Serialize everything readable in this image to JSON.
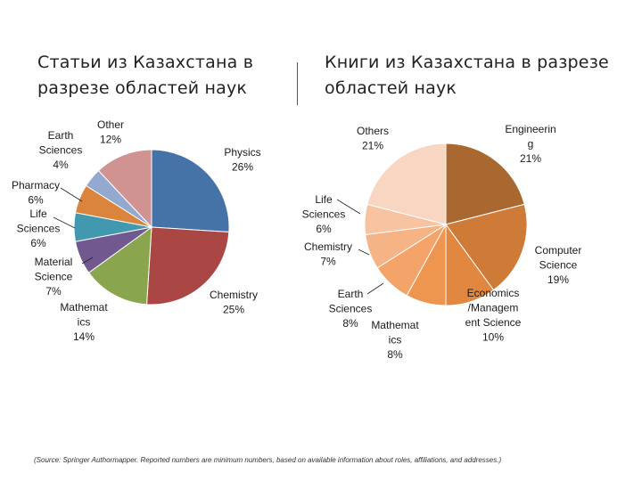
{
  "charts": {
    "left": {
      "title": "Статьи из Казахстана в разрезе областей наук"
    },
    "right": {
      "title": "Книги из Казахстана в разрезе областей наук"
    }
  },
  "source": "(Source: Springer Authormapper. Reported numbers are minimum numbers, based on available information about roles, affiliations, and addresses.)",
  "chart_data": [
    {
      "type": "pie",
      "title": "Статьи из Казахстана в разрезе областей наук",
      "slices": [
        {
          "label": "Physics",
          "value": 26,
          "value_text": "26%",
          "color": "#4572A7"
        },
        {
          "label": "Chemistry",
          "value": 25,
          "value_text": "25%",
          "color": "#AA4643"
        },
        {
          "label": "Mathematics",
          "value": 14,
          "value_text": "14%",
          "color": "#89A54E"
        },
        {
          "label": "Material Science",
          "value": 7,
          "value_text": "7%",
          "color": "#71588F"
        },
        {
          "label": "Life Sciences",
          "value": 6,
          "value_text": "6%",
          "color": "#4198AF"
        },
        {
          "label": "Pharmacy",
          "value": 6,
          "value_text": "6%",
          "color": "#DB843D"
        },
        {
          "label": "Earth Sciences",
          "value": 4,
          "value_text": "4%",
          "color": "#93A9CF"
        },
        {
          "label": "Other",
          "value": 12,
          "value_text": "12%",
          "color": "#D19392"
        }
      ]
    },
    {
      "type": "pie",
      "title": "Книги из Казахстана в разрезе областей наук",
      "slices": [
        {
          "label": "Engineering",
          "value": 21,
          "value_text": "21%",
          "color": "#A86830"
        },
        {
          "label": "Computer Science",
          "value": 19,
          "value_text": "19%",
          "color": "#CF7B38"
        },
        {
          "label": "Economics /Management Science",
          "value": 10,
          "value_text": "10%",
          "color": "#E2873F"
        },
        {
          "label": "Mathematics",
          "value": 8,
          "value_text": "8%",
          "color": "#EE9550"
        },
        {
          "label": "Earth Sciences",
          "value": 8,
          "value_text": "8%",
          "color": "#F4A468"
        },
        {
          "label": "Chemistry",
          "value": 7,
          "value_text": "7%",
          "color": "#F6B385"
        },
        {
          "label": "Life Sciences",
          "value": 6,
          "value_text": "6%",
          "color": "#F8C3A1"
        },
        {
          "label": "Others",
          "value": 21,
          "value_text": "21%",
          "color": "#F9D6C2"
        }
      ]
    }
  ],
  "labels": {
    "left": [
      {
        "lines": [
          "Physics",
          "26%"
        ]
      },
      {
        "lines": [
          "Chemistry",
          "25%"
        ]
      },
      {
        "lines": [
          "Mathemat",
          "ics",
          "14%"
        ]
      },
      {
        "lines": [
          "Material",
          "Science",
          "7%"
        ]
      },
      {
        "lines": [
          "Life",
          "Sciences",
          "6%"
        ]
      },
      {
        "lines": [
          "Pharmacy",
          "6%"
        ]
      },
      {
        "lines": [
          "Earth",
          "Sciences",
          "4%"
        ]
      },
      {
        "lines": [
          "Other",
          "12%"
        ]
      }
    ],
    "right": [
      {
        "lines": [
          "Engineerin",
          "g",
          "21%"
        ]
      },
      {
        "lines": [
          "Computer",
          "Science",
          "19%"
        ]
      },
      {
        "lines": [
          "Economics",
          "/Managem",
          "ent Science",
          "10%"
        ]
      },
      {
        "lines": [
          "Mathemat",
          "ics",
          "8%"
        ]
      },
      {
        "lines": [
          "Earth",
          "Sciences",
          "8%"
        ]
      },
      {
        "lines": [
          "Chemistry",
          "7%"
        ]
      },
      {
        "lines": [
          "Life",
          "Sciences",
          "6%"
        ]
      },
      {
        "lines": [
          "Others",
          "21%"
        ]
      }
    ]
  }
}
